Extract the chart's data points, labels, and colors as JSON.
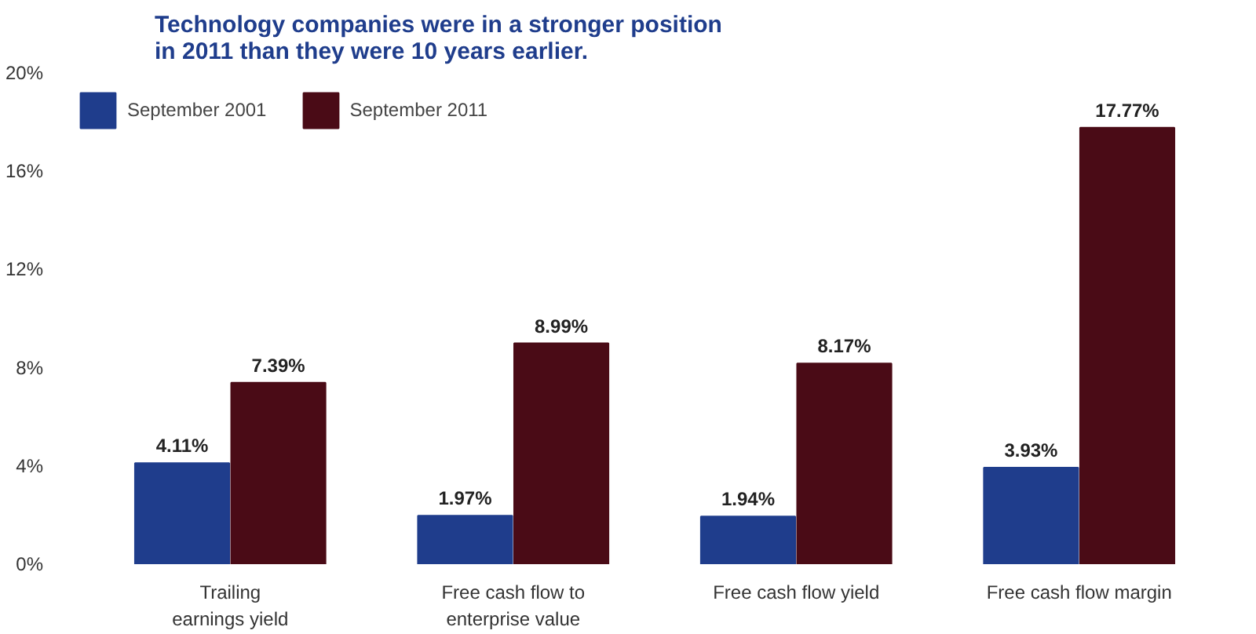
{
  "chart_data": {
    "type": "bar",
    "title": "Technology companies were in a stronger position\nin 2011 than they were 10 years earlier.",
    "categories": [
      "Trailing\nearnings yield",
      "Free cash flow to\nenterprise value",
      "Free cash flow yield",
      "Free cash flow margin"
    ],
    "series": [
      {
        "name": "September 2001",
        "color": "#1f3d8c",
        "values": [
          4.11,
          1.97,
          1.94,
          3.93
        ],
        "value_labels": [
          "4.11%",
          "1.97%",
          "1.94%",
          "3.93%"
        ]
      },
      {
        "name": "September 2011",
        "color": "#4a0b16",
        "values": [
          7.39,
          8.99,
          8.17,
          17.77
        ],
        "value_labels": [
          "7.39%",
          "8.99%",
          "8.17%",
          "17.77%"
        ]
      }
    ],
    "ylim": [
      0,
      20
    ],
    "yticks": [
      {
        "value": 0,
        "label": "0%"
      },
      {
        "value": 4,
        "label": "4%"
      },
      {
        "value": 8,
        "label": "8%"
      },
      {
        "value": 12,
        "label": "12%"
      },
      {
        "value": 16,
        "label": "16%"
      },
      {
        "value": 20,
        "label": "20%"
      }
    ],
    "grid": false,
    "legend": "top left"
  }
}
